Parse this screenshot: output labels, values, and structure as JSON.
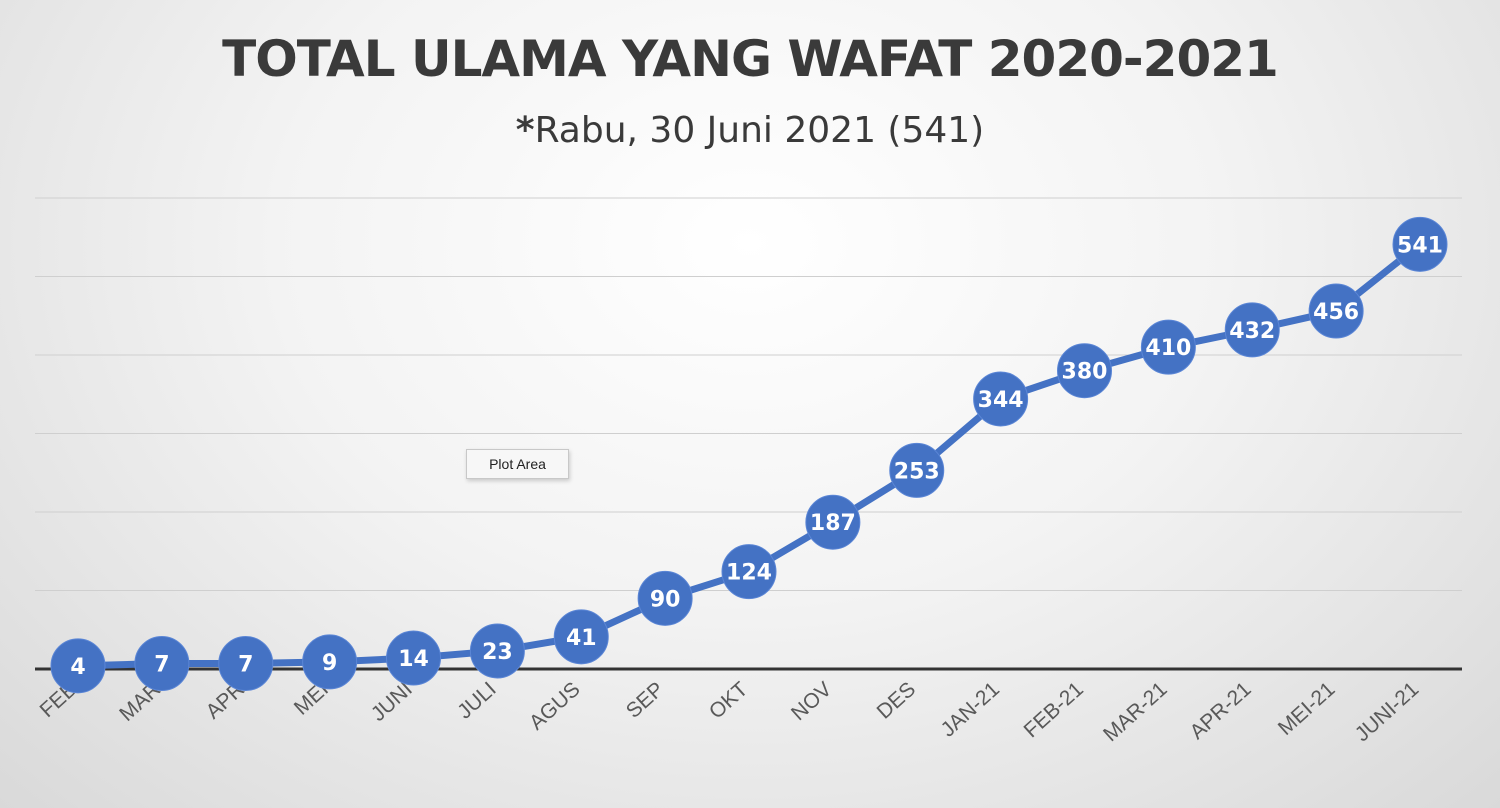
{
  "chart_data": {
    "type": "line",
    "title": "TOTAL ULAMA YANG WAFAT 2020-2021",
    "subtitle_asterisk": "*",
    "subtitle": "Rabu, 30 Juni 2021 (541)",
    "categories": [
      "FEB",
      "MAR",
      "APR",
      "MEI",
      "JUNI",
      "JULI",
      "AGUS",
      "SEP",
      "OKT",
      "NOV",
      "DES",
      "JAN-21",
      "FEB-21",
      "MAR-21",
      "APR-21",
      "MEI-21",
      "JUNI-21"
    ],
    "series": [
      {
        "values": [
          4,
          7,
          7,
          9,
          14,
          23,
          41,
          90,
          124,
          187,
          253,
          344,
          380,
          410,
          432,
          456,
          541
        ]
      }
    ],
    "ylim": [
      0,
      600
    ],
    "grid": true,
    "legend": "none",
    "data_labels": true,
    "colors": {
      "line": "#4472c4",
      "label_text": "#ffffff",
      "axis": "#333333",
      "grid": "#cfcfcf",
      "tick_text": "#595959"
    }
  },
  "tooltip": {
    "label": "Plot Area"
  }
}
